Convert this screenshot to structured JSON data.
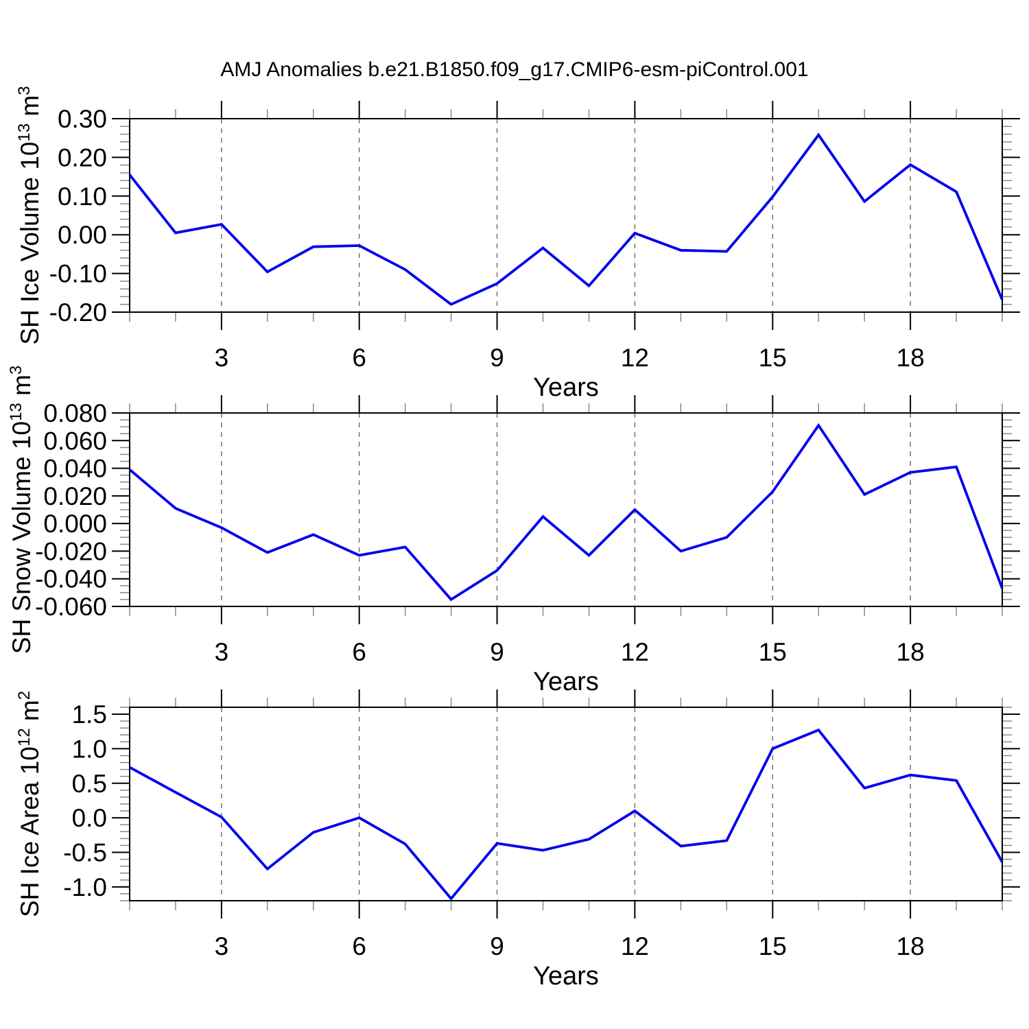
{
  "chart_data": {
    "type": "line",
    "title": "AMJ Anomalies b.e21.B1850.f09_g17.CMIP6-esm-piControl.001",
    "xlabel": "Years",
    "x": [
      1,
      2,
      3,
      4,
      5,
      6,
      7,
      8,
      9,
      10,
      11,
      12,
      13,
      14,
      15,
      16,
      17,
      18,
      19,
      20
    ],
    "xlim": [
      1,
      20
    ],
    "xticks_major": [
      3,
      6,
      9,
      12,
      15,
      18
    ],
    "xtick_minor_step": 1,
    "grid": {
      "vertical_dashed_at": [
        3,
        6,
        9,
        12,
        15,
        18
      ],
      "horizontal": "off"
    },
    "legend": "none",
    "series_color": "#0000EE",
    "panels": [
      {
        "name": "sh-ice-volume",
        "ylabel": "SH Ice Volume 10^13 m^3",
        "ylabel_parts": [
          {
            "text": "SH Ice Volume 10"
          },
          {
            "text": "13",
            "sup": true
          },
          {
            "text": " m"
          },
          {
            "text": "3",
            "sup": true
          }
        ],
        "ylim": [
          -0.2,
          0.3
        ],
        "ytick_major_step": 0.1,
        "ytick_minor_step": 0.02,
        "ytick_decimals": 2,
        "ytick_labels": [
          "-0.20",
          "-0.10",
          "0.00",
          "0.10",
          "0.20",
          "0.30"
        ],
        "values": [
          0.155,
          0.005,
          0.027,
          -0.096,
          -0.031,
          -0.028,
          -0.09,
          -0.18,
          -0.126,
          -0.034,
          -0.132,
          0.004,
          -0.04,
          -0.043,
          0.098,
          0.258,
          0.086,
          0.181,
          0.111,
          -0.168
        ]
      },
      {
        "name": "sh-snow-volume",
        "ylabel": "SH Snow Volume 10^13 m^3",
        "ylabel_parts": [
          {
            "text": "SH Snow Volume 10"
          },
          {
            "text": "13",
            "sup": true
          },
          {
            "text": " m"
          },
          {
            "text": "3",
            "sup": true
          }
        ],
        "ylim": [
          -0.06,
          0.08
        ],
        "ytick_major_step": 0.02,
        "ytick_minor_step": 0.005,
        "ytick_decimals": 3,
        "ytick_labels": [
          "-0.060",
          "-0.040",
          "-0.020",
          "0.000",
          "0.020",
          "0.040",
          "0.060",
          "0.080"
        ],
        "values": [
          0.039,
          0.011,
          -0.003,
          -0.021,
          -0.008,
          -0.023,
          -0.017,
          -0.055,
          -0.034,
          0.005,
          -0.023,
          0.01,
          -0.02,
          -0.01,
          0.023,
          0.071,
          0.021,
          0.037,
          0.041,
          -0.047
        ]
      },
      {
        "name": "sh-ice-area",
        "ylabel": "SH Ice Area 10^12 m^2",
        "ylabel_parts": [
          {
            "text": "SH Ice Area 10"
          },
          {
            "text": "12",
            "sup": true
          },
          {
            "text": " m"
          },
          {
            "text": "2",
            "sup": true
          }
        ],
        "ylim": [
          -1.2,
          1.6
        ],
        "ytick_major_step": 0.5,
        "ytick_minor_step": 0.1,
        "ytick_decimals": 1,
        "ytick_labels": [
          "-1.0",
          "-0.5",
          "0.0",
          "0.5",
          "1.0",
          "1.5"
        ],
        "values": [
          0.73,
          0.37,
          0.01,
          -0.74,
          -0.21,
          0.0,
          -0.38,
          -1.17,
          -0.37,
          -0.47,
          -0.31,
          0.1,
          -0.41,
          -0.33,
          1.0,
          1.27,
          0.43,
          0.62,
          0.54,
          -0.64
        ]
      }
    ]
  },
  "colors": {
    "line": "#0000EE",
    "axis": "#000000",
    "tick_minor": "#888888",
    "grid": "#7a7a7a",
    "text": "#000000",
    "background": "#ffffff"
  }
}
